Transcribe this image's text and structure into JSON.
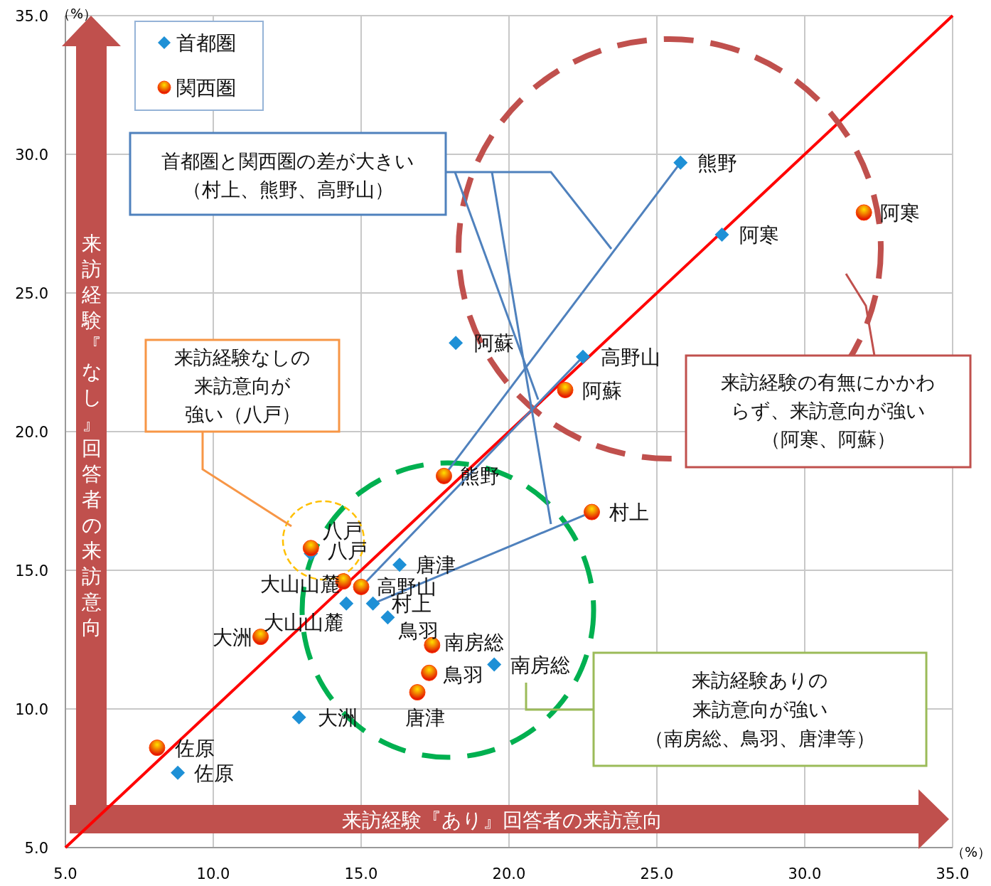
{
  "chart_data": {
    "type": "scatter",
    "xlim": [
      5,
      35
    ],
    "ylim": [
      5,
      35
    ],
    "xticks": [
      {
        "value": 5,
        "label": "5.0"
      },
      {
        "value": 10,
        "label": "10.0"
      },
      {
        "value": 15,
        "label": "15.0"
      },
      {
        "value": 20,
        "label": "20.0"
      },
      {
        "value": 25,
        "label": "25.0"
      },
      {
        "value": 30,
        "label": "30.0"
      },
      {
        "value": 35,
        "label": "35.0"
      }
    ],
    "yticks": [
      {
        "value": 5,
        "label": "5.0"
      },
      {
        "value": 10,
        "label": "10.0"
      },
      {
        "value": 15,
        "label": "15.0"
      },
      {
        "value": 20,
        "label": "20.0"
      },
      {
        "value": 25,
        "label": "25.0"
      },
      {
        "value": 30,
        "label": "30.0"
      },
      {
        "value": 35,
        "label": "35.0"
      }
    ],
    "grid": true,
    "legend": "top left",
    "xlabel": "来訪経験『あり』回答者の来訪意向",
    "ylabel": "来訪経験『なし』回答者の来訪意向",
    "annotations": [
      "（%）",
      "（%）",
      "首都圏と関西圏の差が大きい（村上、熊野、高野山）",
      "来訪経験なしの来訪意向が強い（八戸）",
      "来訪経験の有無にかかわらず、来訪意向が強い（阿寒、阿蘇）",
      "来訪経験ありの来訪意向が強い（南房総、鳥羽、唐津等）"
    ],
    "series": [
      {
        "name": "首都圏",
        "color": "#1e90d6",
        "marker": "diamond",
        "x": [
          25.8,
          27.2,
          18.2,
          22.5,
          16.3,
          13.3,
          14.5,
          15.4,
          15.9,
          19.5,
          12.9,
          8.8
        ],
        "values": [
          29.7,
          27.1,
          23.2,
          22.7,
          15.2,
          15.6,
          13.8,
          13.8,
          13.3,
          11.6,
          9.7,
          7.7
        ],
        "value_labels": [
          "熊野",
          "阿寒",
          "阿蘇",
          "高野山",
          "唐津",
          "八戸",
          "大山山麓",
          "村上",
          "鳥羽",
          "南房総",
          "大洲",
          "佐原"
        ]
      },
      {
        "name": "関西圏",
        "color": "#ff4000",
        "marker": "circle",
        "x": [
          32.0,
          21.9,
          17.8,
          22.8,
          13.3,
          14.4,
          15.0,
          11.6,
          17.4,
          17.3,
          16.9,
          8.1
        ],
        "values": [
          27.9,
          21.5,
          18.4,
          17.1,
          15.8,
          14.6,
          14.4,
          12.6,
          12.3,
          11.3,
          10.6,
          8.6
        ],
        "value_labels": [
          "阿寒",
          "阿蘇",
          "熊野",
          "村上",
          "八戸",
          "大山山麓",
          "高野山",
          "大洲",
          "南房総",
          "鳥羽",
          "唐津",
          "佐原"
        ]
      },
      {
        "type": "line",
        "color": "#ff0000",
        "x": [
          5,
          35
        ],
        "values": [
          5,
          35
        ]
      }
    ]
  }
}
